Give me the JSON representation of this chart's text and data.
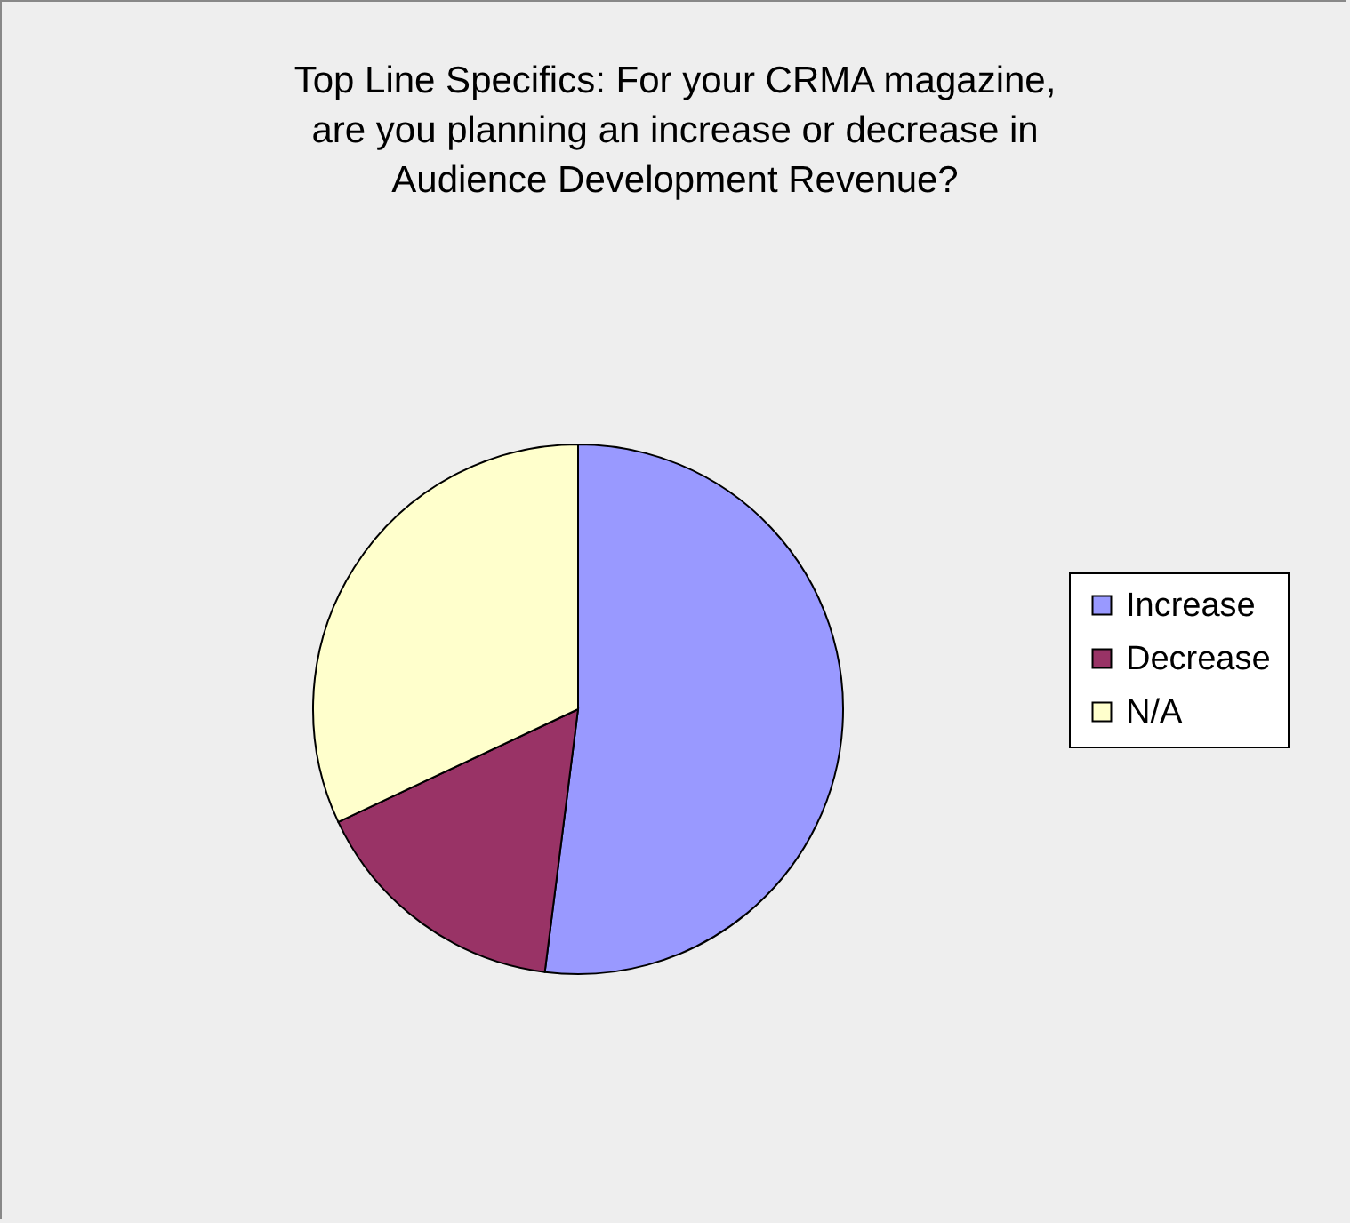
{
  "chart_data": {
    "type": "pie",
    "title": "Top Line Specifics: For your CRMA magazine, are you planning an increase or decrease in Audience Development Revenue?",
    "categories": [
      "Increase",
      "Decrease",
      "N/A"
    ],
    "values": [
      52,
      16,
      32
    ],
    "colors": [
      "#9999ff",
      "#993366",
      "#ffffcc"
    ],
    "legend": "right"
  }
}
